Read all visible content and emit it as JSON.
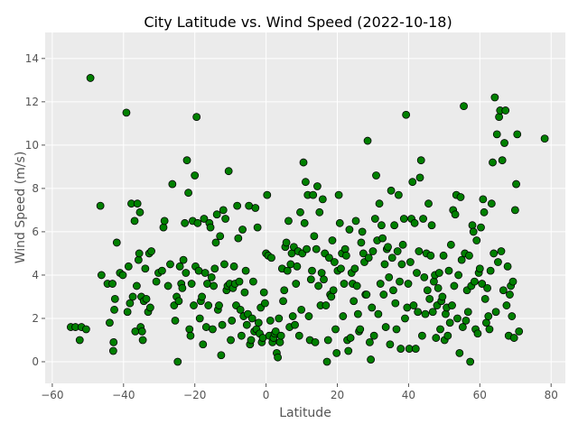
{
  "chart_data": {
    "type": "scatter",
    "title": "City Latitude vs. Wind Speed (2022-10-18)",
    "xlabel": "Latitude",
    "ylabel": "Wind Speed (m/s)",
    "xlim": [
      -62,
      84
    ],
    "ylim": [
      -1,
      15.2
    ],
    "xticks": [
      -60,
      -40,
      -20,
      0,
      20,
      40,
      60,
      80
    ],
    "yticks": [
      0,
      2,
      4,
      6,
      8,
      10,
      12,
      14
    ],
    "grid": true,
    "marker_color": "#008000",
    "marker_edge": "#000000",
    "background": "#ebebeb",
    "points": [
      [
        -54.8,
        1.6
      ],
      [
        -53.5,
        1.6
      ],
      [
        -52.3,
        1.0
      ],
      [
        -51.8,
        1.6
      ],
      [
        -50.5,
        1.5
      ],
      [
        -49.3,
        13.1
      ],
      [
        -46.5,
        7.2
      ],
      [
        -46.2,
        4.0
      ],
      [
        -44.5,
        3.6
      ],
      [
        -43.9,
        1.8
      ],
      [
        -43.1,
        3.6
      ],
      [
        -42.9,
        0.5
      ],
      [
        -42.8,
        0.9
      ],
      [
        -42.6,
        2.4
      ],
      [
        -42.4,
        2.9
      ],
      [
        -41.9,
        5.5
      ],
      [
        -41.0,
        4.1
      ],
      [
        -40.2,
        4.0
      ],
      [
        -39.2,
        11.5
      ],
      [
        -38.9,
        2.3
      ],
      [
        -38.6,
        4.4
      ],
      [
        -38.2,
        2.7
      ],
      [
        -37.8,
        7.3
      ],
      [
        -37.4,
        3.0
      ],
      [
        -36.9,
        6.5
      ],
      [
        -36.7,
        1.4
      ],
      [
        -36.3,
        3.5
      ],
      [
        -36.1,
        7.3
      ],
      [
        -35.8,
        4.7
      ],
      [
        -35.6,
        5.0
      ],
      [
        -35.4,
        6.9
      ],
      [
        -35.2,
        1.6
      ],
      [
        -35.0,
        3.0
      ],
      [
        -34.8,
        1.4
      ],
      [
        -34.6,
        1.0
      ],
      [
        -34.3,
        2.8
      ],
      [
        -33.9,
        4.3
      ],
      [
        -33.6,
        2.9
      ],
      [
        -33.1,
        2.3
      ],
      [
        -32.8,
        5.0
      ],
      [
        -32.5,
        2.5
      ],
      [
        -32.2,
        5.1
      ],
      [
        -30.8,
        3.7
      ],
      [
        -30.2,
        4.1
      ],
      [
        -29.2,
        4.2
      ],
      [
        -28.8,
        6.2
      ],
      [
        -28.5,
        6.5
      ],
      [
        -27.5,
        3.5
      ],
      [
        -26.9,
        4.5
      ],
      [
        -26.3,
        8.2
      ],
      [
        -25.8,
        2.6
      ],
      [
        -25.5,
        1.9
      ],
      [
        -25.1,
        3.0
      ],
      [
        -24.8,
        0.0
      ],
      [
        -24.5,
        2.8
      ],
      [
        -24.2,
        4.4
      ],
      [
        -23.8,
        3.6
      ],
      [
        -23.5,
        3.4
      ],
      [
        -23.2,
        4.7
      ],
      [
        -22.8,
        6.4
      ],
      [
        -22.5,
        4.1
      ],
      [
        -22.2,
        9.3
      ],
      [
        -21.8,
        7.8
      ],
      [
        -21.5,
        1.5
      ],
      [
        -21.2,
        1.2
      ],
      [
        -20.9,
        3.6
      ],
      [
        -20.6,
        6.5
      ],
      [
        -20.3,
        2.6
      ],
      [
        -20.0,
        8.6
      ],
      [
        -19.8,
        4.4
      ],
      [
        -19.5,
        11.3
      ],
      [
        -19.2,
        6.4
      ],
      [
        -18.9,
        4.2
      ],
      [
        -18.6,
        2.0
      ],
      [
        -18.3,
        2.8
      ],
      [
        -18.0,
        3.0
      ],
      [
        -17.7,
        0.8
      ],
      [
        -17.4,
        6.6
      ],
      [
        -17.1,
        4.1
      ],
      [
        -16.8,
        1.6
      ],
      [
        -16.5,
        3.6
      ],
      [
        -16.2,
        2.6
      ],
      [
        -15.9,
        6.4
      ],
      [
        -15.6,
        6.2
      ],
      [
        -15.3,
        3.9
      ],
      [
        -15.0,
        1.5
      ],
      [
        -14.7,
        3.5
      ],
      [
        -14.4,
        4.3
      ],
      [
        -14.1,
        5.5
      ],
      [
        -13.8,
        6.8
      ],
      [
        -13.5,
        2.4
      ],
      [
        -13.2,
        2.6
      ],
      [
        -12.9,
        5.8
      ],
      [
        -12.6,
        0.3
      ],
      [
        -12.3,
        1.7
      ],
      [
        -12.0,
        7.0
      ],
      [
        -11.7,
        4.5
      ],
      [
        -11.4,
        6.6
      ],
      [
        -11.1,
        3.3
      ],
      [
        -10.8,
        3.5
      ],
      [
        -10.5,
        8.8
      ],
      [
        -10.2,
        3.6
      ],
      [
        -9.9,
        1.0
      ],
      [
        -9.6,
        1.9
      ],
      [
        -9.3,
        3.4
      ],
      [
        -9.0,
        4.4
      ],
      [
        -8.7,
        3.6
      ],
      [
        -8.4,
        2.6
      ],
      [
        -8.1,
        7.2
      ],
      [
        -7.8,
        5.7
      ],
      [
        -7.5,
        3.7
      ],
      [
        -7.2,
        2.4
      ],
      [
        -6.9,
        1.2
      ],
      [
        -6.6,
        6.1
      ],
      [
        -6.3,
        2.1
      ],
      [
        -6.0,
        3.2
      ],
      [
        -5.7,
        4.2
      ],
      [
        -5.4,
        1.7
      ],
      [
        -5.1,
        2.2
      ],
      [
        -4.8,
        7.2
      ],
      [
        -4.5,
        0.8
      ],
      [
        -4.2,
        1.0
      ],
      [
        -3.9,
        2.0
      ],
      [
        -3.6,
        3.7
      ],
      [
        -3.3,
        1.4
      ],
      [
        -3.0,
        7.1
      ],
      [
        -2.7,
        1.5
      ],
      [
        -2.4,
        6.2
      ],
      [
        -2.1,
        1.8
      ],
      [
        -1.8,
        1.3
      ],
      [
        -1.5,
        2.5
      ],
      [
        -1.2,
        0.9
      ],
      [
        -0.9,
        1.1
      ],
      [
        -0.6,
        3.2
      ],
      [
        -0.3,
        2.7
      ],
      [
        0.0,
        5.0
      ],
      [
        0.3,
        7.7
      ],
      [
        0.6,
        4.9
      ],
      [
        0.9,
        1.2
      ],
      [
        1.2,
        1.9
      ],
      [
        1.5,
        4.8
      ],
      [
        1.8,
        0.9
      ],
      [
        2.1,
        1.1
      ],
      [
        2.4,
        1.3
      ],
      [
        2.7,
        1.4
      ],
      [
        3.0,
        0.4
      ],
      [
        3.3,
        0.2
      ],
      [
        3.6,
        2.0
      ],
      [
        3.9,
        0.9
      ],
      [
        4.2,
        1.2
      ],
      [
        4.5,
        4.3
      ],
      [
        4.8,
        2.8
      ],
      [
        5.1,
        3.3
      ],
      [
        5.4,
        5.3
      ],
      [
        5.7,
        5.5
      ],
      [
        6.0,
        4.2
      ],
      [
        6.3,
        6.5
      ],
      [
        6.6,
        1.6
      ],
      [
        6.9,
        4.5
      ],
      [
        7.2,
        5.0
      ],
      [
        7.5,
        2.1
      ],
      [
        7.8,
        5.3
      ],
      [
        8.1,
        1.7
      ],
      [
        8.4,
        3.6
      ],
      [
        8.7,
        4.4
      ],
      [
        9.0,
        5.1
      ],
      [
        9.3,
        1.2
      ],
      [
        9.6,
        6.9
      ],
      [
        9.9,
        2.4
      ],
      [
        10.2,
        5.0
      ],
      [
        10.5,
        9.2
      ],
      [
        10.8,
        6.4
      ],
      [
        11.1,
        8.3
      ],
      [
        11.4,
        5.2
      ],
      [
        11.7,
        7.7
      ],
      [
        12.0,
        2.1
      ],
      [
        12.3,
        1.0
      ],
      [
        12.6,
        3.8
      ],
      [
        12.9,
        4.2
      ],
      [
        13.2,
        7.7
      ],
      [
        13.5,
        5.8
      ],
      [
        13.8,
        0.9
      ],
      [
        14.1,
        5.2
      ],
      [
        14.4,
        8.1
      ],
      [
        14.7,
        3.5
      ],
      [
        15.0,
        6.9
      ],
      [
        15.3,
        2.6
      ],
      [
        15.6,
        4.1
      ],
      [
        15.9,
        7.5
      ],
      [
        16.2,
        3.8
      ],
      [
        16.5,
        5.0
      ],
      [
        16.8,
        2.6
      ],
      [
        17.1,
        0.0
      ],
      [
        17.4,
        1.0
      ],
      [
        17.7,
        4.8
      ],
      [
        18.0,
        3.1
      ],
      [
        18.3,
        3.0
      ],
      [
        18.6,
        5.6
      ],
      [
        18.9,
        3.3
      ],
      [
        19.2,
        4.6
      ],
      [
        19.5,
        1.5
      ],
      [
        19.8,
        0.4
      ],
      [
        20.1,
        4.2
      ],
      [
        20.4,
        7.7
      ],
      [
        20.7,
        6.4
      ],
      [
        21.0,
        4.3
      ],
      [
        21.3,
        5.0
      ],
      [
        21.6,
        2.1
      ],
      [
        21.9,
        3.6
      ],
      [
        22.2,
        5.2
      ],
      [
        22.5,
        4.9
      ],
      [
        22.8,
        1.0
      ],
      [
        23.1,
        0.5
      ],
      [
        23.4,
        6.1
      ],
      [
        23.7,
        1.1
      ],
      [
        24.0,
        4.1
      ],
      [
        24.3,
        3.6
      ],
      [
        24.6,
        2.8
      ],
      [
        24.9,
        4.3
      ],
      [
        25.2,
        6.5
      ],
      [
        25.5,
        3.5
      ],
      [
        25.8,
        2.2
      ],
      [
        26.1,
        1.4
      ],
      [
        26.4,
        1.5
      ],
      [
        26.7,
        5.5
      ],
      [
        27.0,
        6.0
      ],
      [
        27.3,
        5.0
      ],
      [
        27.6,
        4.6
      ],
      [
        27.9,
        3.1
      ],
      [
        28.2,
        3.1
      ],
      [
        28.5,
        10.2
      ],
      [
        28.8,
        4.8
      ],
      [
        29.1,
        0.9
      ],
      [
        29.4,
        0.1
      ],
      [
        29.7,
        2.5
      ],
      [
        30.0,
        5.1
      ],
      [
        30.3,
        1.2
      ],
      [
        30.6,
        6.6
      ],
      [
        30.9,
        8.6
      ],
      [
        31.2,
        5.6
      ],
      [
        31.5,
        2.2
      ],
      [
        31.8,
        7.3
      ],
      [
        32.1,
        3.6
      ],
      [
        32.4,
        6.3
      ],
      [
        32.7,
        5.7
      ],
      [
        33.0,
        3.1
      ],
      [
        33.3,
        4.5
      ],
      [
        33.6,
        1.6
      ],
      [
        33.9,
        5.2
      ],
      [
        34.2,
        5.3
      ],
      [
        34.5,
        3.9
      ],
      [
        34.8,
        0.8
      ],
      [
        35.1,
        7.9
      ],
      [
        35.4,
        4.8
      ],
      [
        35.7,
        3.3
      ],
      [
        36.0,
        6.3
      ],
      [
        36.3,
        2.7
      ],
      [
        36.6,
        1.5
      ],
      [
        36.9,
        5.1
      ],
      [
        37.2,
        7.7
      ],
      [
        37.5,
        3.7
      ],
      [
        37.8,
        0.6
      ],
      [
        38.1,
        4.5
      ],
      [
        38.4,
        5.4
      ],
      [
        38.7,
        6.6
      ],
      [
        39.0,
        2.0
      ],
      [
        39.3,
        11.4
      ],
      [
        39.6,
        2.5
      ],
      [
        39.9,
        3.6
      ],
      [
        40.2,
        0.6
      ],
      [
        40.5,
        4.6
      ],
      [
        40.8,
        6.6
      ],
      [
        41.1,
        8.3
      ],
      [
        41.4,
        2.6
      ],
      [
        41.7,
        6.4
      ],
      [
        42.0,
        0.6
      ],
      [
        42.3,
        4.1
      ],
      [
        42.6,
        2.3
      ],
      [
        42.9,
        5.1
      ],
      [
        43.2,
        8.5
      ],
      [
        43.5,
        9.3
      ],
      [
        43.8,
        1.2
      ],
      [
        44.1,
        6.6
      ],
      [
        44.4,
        3.9
      ],
      [
        44.7,
        2.2
      ],
      [
        45.0,
        5.0
      ],
      [
        45.3,
        3.3
      ],
      [
        45.6,
        7.3
      ],
      [
        45.9,
        2.9
      ],
      [
        46.2,
        4.9
      ],
      [
        46.5,
        6.3
      ],
      [
        46.8,
        2.3
      ],
      [
        47.1,
        3.7
      ],
      [
        47.4,
        4.0
      ],
      [
        47.7,
        1.1
      ],
      [
        48.0,
        2.6
      ],
      [
        48.3,
        3.4
      ],
      [
        48.6,
        4.1
      ],
      [
        48.9,
        1.5
      ],
      [
        49.2,
        2.8
      ],
      [
        49.5,
        3.0
      ],
      [
        49.8,
        4.9
      ],
      [
        50.1,
        1.0
      ],
      [
        50.4,
        2.2
      ],
      [
        50.7,
        2.5
      ],
      [
        51.0,
        1.2
      ],
      [
        51.3,
        4.2
      ],
      [
        51.6,
        1.8
      ],
      [
        51.9,
        5.4
      ],
      [
        52.2,
        2.6
      ],
      [
        52.5,
        7.0
      ],
      [
        52.8,
        3.5
      ],
      [
        53.1,
        6.8
      ],
      [
        53.4,
        7.7
      ],
      [
        53.7,
        2.0
      ],
      [
        54.0,
        4.0
      ],
      [
        54.3,
        0.4
      ],
      [
        54.6,
        7.6
      ],
      [
        54.9,
        4.7
      ],
      [
        55.2,
        1.6
      ],
      [
        55.5,
        11.8
      ],
      [
        55.8,
        5.0
      ],
      [
        56.1,
        1.9
      ],
      [
        56.4,
        3.3
      ],
      [
        56.7,
        2.3
      ],
      [
        57.0,
        4.9
      ],
      [
        57.3,
        0.0
      ],
      [
        57.6,
        3.5
      ],
      [
        57.9,
        6.3
      ],
      [
        58.2,
        6.0
      ],
      [
        58.5,
        3.7
      ],
      [
        58.8,
        1.5
      ],
      [
        59.1,
        5.6
      ],
      [
        59.4,
        1.3
      ],
      [
        59.7,
        4.1
      ],
      [
        60.0,
        4.3
      ],
      [
        60.3,
        6.2
      ],
      [
        60.6,
        3.6
      ],
      [
        60.9,
        7.5
      ],
      [
        61.2,
        6.9
      ],
      [
        61.5,
        2.9
      ],
      [
        61.8,
        1.8
      ],
      [
        62.1,
        3.4
      ],
      [
        62.4,
        2.1
      ],
      [
        62.7,
        1.5
      ],
      [
        63.0,
        4.2
      ],
      [
        63.3,
        7.3
      ],
      [
        63.6,
        9.2
      ],
      [
        63.9,
        5.0
      ],
      [
        64.2,
        12.2
      ],
      [
        64.5,
        2.3
      ],
      [
        64.8,
        10.5
      ],
      [
        65.1,
        4.6
      ],
      [
        65.4,
        11.3
      ],
      [
        65.7,
        11.6
      ],
      [
        66.0,
        5.1
      ],
      [
        66.3,
        9.3
      ],
      [
        66.6,
        3.3
      ],
      [
        66.9,
        10.1
      ],
      [
        67.2,
        11.6
      ],
      [
        67.5,
        2.6
      ],
      [
        67.8,
        4.4
      ],
      [
        68.1,
        1.2
      ],
      [
        68.4,
        3.1
      ],
      [
        68.7,
        3.5
      ],
      [
        69.0,
        2.1
      ],
      [
        69.3,
        3.7
      ],
      [
        69.6,
        1.1
      ],
      [
        69.9,
        7.0
      ],
      [
        70.2,
        8.2
      ],
      [
        70.5,
        10.5
      ],
      [
        71.0,
        1.4
      ],
      [
        78.2,
        10.3
      ]
    ]
  }
}
